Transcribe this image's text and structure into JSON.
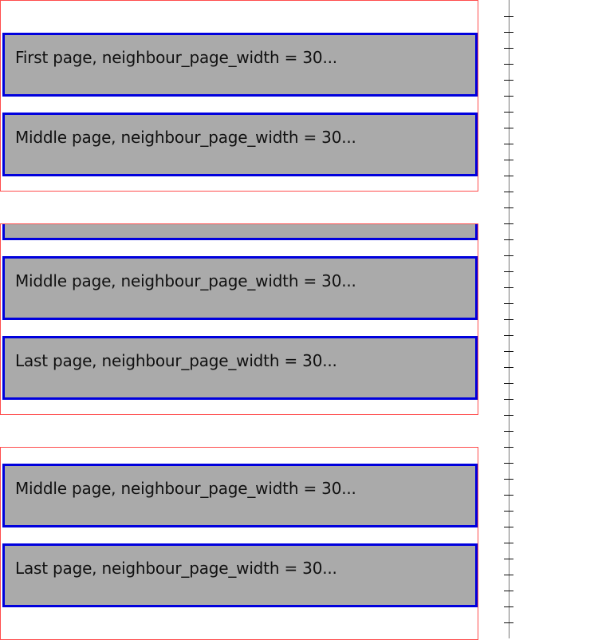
{
  "galleries": [
    {
      "pages": [
        {
          "label": "First page, neighbour_page_width = 30..."
        },
        {
          "label": "Middle page, neighbour_page_width = 30..."
        }
      ]
    },
    {
      "pages": [
        {
          "label": ""
        },
        {
          "label": "Middle page, neighbour_page_width = 30..."
        },
        {
          "label": "Last page, neighbour_page_width = 30..."
        }
      ]
    },
    {
      "pages": [
        {
          "label": "Middle page, neighbour_page_width = 30..."
        },
        {
          "label": "Last page, neighbour_page_width = 30..."
        }
      ]
    }
  ],
  "colors": {
    "frame_border": "#ff4d4d",
    "page_border": "#0000dd",
    "page_fill": "#aaaaaa"
  }
}
